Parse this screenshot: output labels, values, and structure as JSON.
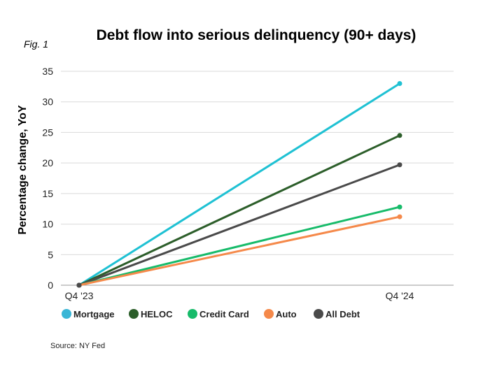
{
  "fig_label": "Fig. 1",
  "source": "Source: NY Fed",
  "chart_data": {
    "type": "line",
    "title": "Debt flow into serious delinquency (90+ days)",
    "xlabel": "",
    "ylabel": "Percentage change, YoY",
    "x": [
      "Q4 '23",
      "Q4 '24"
    ],
    "ylim": [
      0,
      35
    ],
    "yticks": [
      0,
      5,
      10,
      15,
      20,
      25,
      30,
      35
    ],
    "grid": true,
    "legend_position": "bottom",
    "series": [
      {
        "name": "Mortgage",
        "color": "#1fc1d3",
        "values": [
          0,
          33
        ]
      },
      {
        "name": "HELOC",
        "color": "#2c5e2a",
        "values": [
          0,
          24.5
        ]
      },
      {
        "name": "All Debt",
        "color": "#4a4a4a",
        "values": [
          0,
          19.7
        ]
      },
      {
        "name": "Credit Card",
        "color": "#17bb6a",
        "values": [
          0,
          12.8
        ]
      },
      {
        "name": "Auto",
        "color": "#f5894a",
        "values": [
          0,
          11.2
        ]
      }
    ],
    "legend": [
      {
        "name": "Mortgage",
        "color": "#3ab6d6"
      },
      {
        "name": "HELOC",
        "color": "#2c5e2a"
      },
      {
        "name": "Credit Card",
        "color": "#17bb6a"
      },
      {
        "name": "Auto",
        "color": "#f5894a"
      },
      {
        "name": "All Debt",
        "color": "#4a4a4a"
      }
    ]
  }
}
